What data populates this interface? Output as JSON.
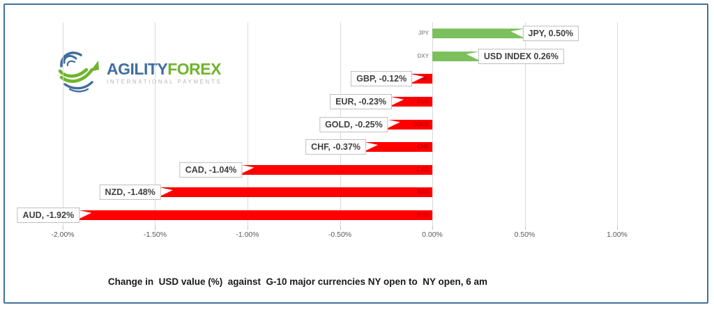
{
  "window": {
    "background": "#FFFFFF",
    "frame_border_color": "#41719C"
  },
  "logo": {
    "brand_part1": "AGILITY",
    "brand_part2": "FOREX",
    "tagline": "INTERNATIONAL PAYMENTS",
    "colors": {
      "part1": "#3F6EA0",
      "part2": "#6FB42C",
      "tagline": "#B3B9BF",
      "icon_blue": "#3F6EA0",
      "icon_green": "#6FB42C"
    }
  },
  "chart_data": {
    "type": "bar",
    "orientation": "horizontal",
    "title": "Change in  USD value (%)  against  G-10 major currencies NY open to  NY open, 6 am",
    "xlabel": "",
    "ylabel": "",
    "xlim": [
      -2.0,
      1.0
    ],
    "grid": true,
    "x_ticks": [
      {
        "value": -2.0,
        "label": "-2.00%"
      },
      {
        "value": -1.5,
        "label": "-1.50%"
      },
      {
        "value": -1.0,
        "label": "-1.00%"
      },
      {
        "value": -0.5,
        "label": "-0.50%"
      },
      {
        "value": 0.0,
        "label": "0.00%"
      },
      {
        "value": 0.5,
        "label": "0.50%"
      },
      {
        "value": 1.0,
        "label": "1.00%"
      }
    ],
    "bars": [
      {
        "category": "JPY",
        "label": "JPY, 0.50%",
        "value": 0.5
      },
      {
        "category": "DXY",
        "label": "USD INDEX 0.26%",
        "value": 0.26
      },
      {
        "category": "GBP",
        "label": "GBP, -0.12%",
        "value": -0.12
      },
      {
        "category": "EUR",
        "label": "EUR, -0.23%",
        "value": -0.23
      },
      {
        "category": "GOLD",
        "label": "GOLD, -0.25%",
        "value": -0.25
      },
      {
        "category": "CHF",
        "label": "CHF, -0.37%",
        "value": -0.37
      },
      {
        "category": "CAD",
        "label": "CAD, -1.04%",
        "value": -1.04
      },
      {
        "category": "NZD",
        "label": "NZD, -1.48%",
        "value": -1.48
      },
      {
        "category": "AUD",
        "label": "AUD, -1.92%",
        "value": -1.92
      }
    ],
    "colors": {
      "positive_bar": "#7CC05E",
      "negative_bar": "#FF0000",
      "gridline": "#D9D9D9",
      "tick_label": "#595959",
      "category_label_positive": "#9A9A9A",
      "category_label_negative": "#C00000",
      "callout_bg": "#FFFFFF",
      "callout_border": "#BFBFBF",
      "callout_text": "#404040"
    }
  }
}
